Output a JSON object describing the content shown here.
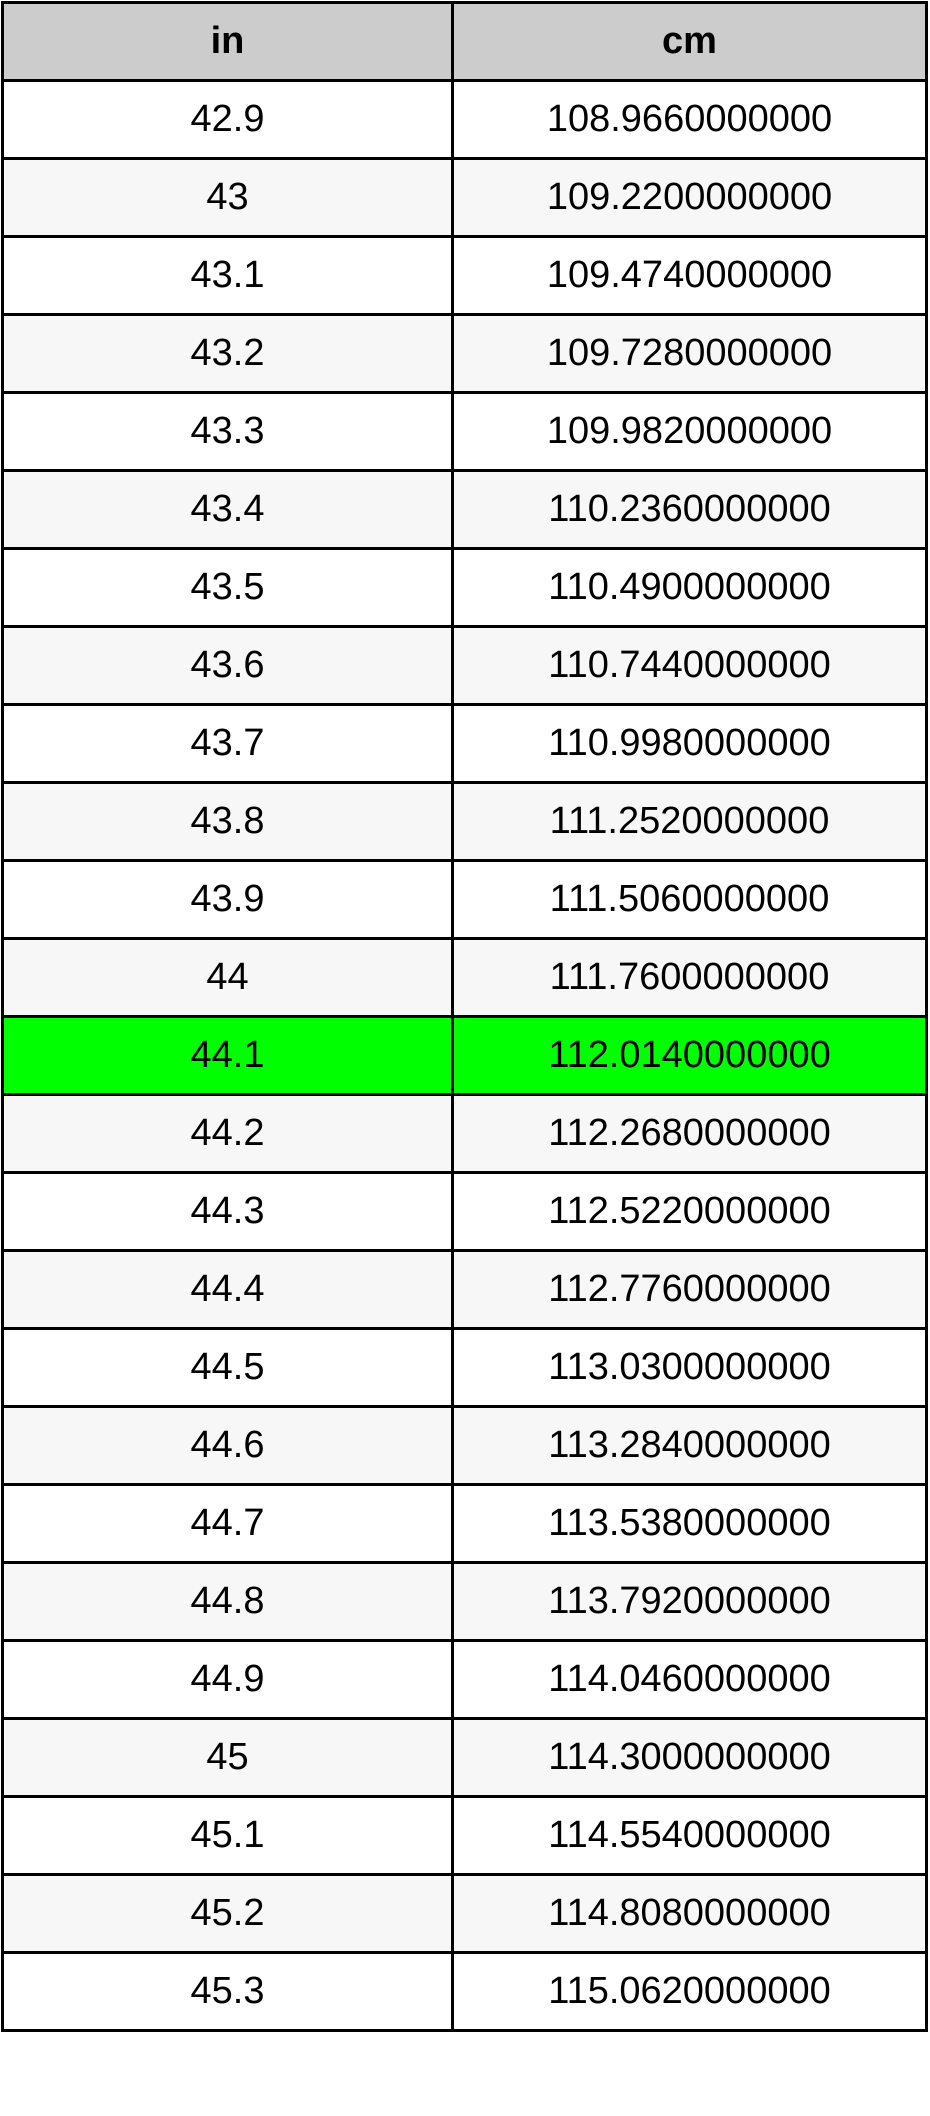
{
  "table": {
    "headers": [
      "in",
      "cm"
    ],
    "highlight_color": "#00ff00",
    "highlighted_row": 12,
    "rows": [
      [
        "42.9",
        "108.9660000000"
      ],
      [
        "43",
        "109.2200000000"
      ],
      [
        "43.1",
        "109.4740000000"
      ],
      [
        "43.2",
        "109.7280000000"
      ],
      [
        "43.3",
        "109.9820000000"
      ],
      [
        "43.4",
        "110.2360000000"
      ],
      [
        "43.5",
        "110.4900000000"
      ],
      [
        "43.6",
        "110.7440000000"
      ],
      [
        "43.7",
        "110.9980000000"
      ],
      [
        "43.8",
        "111.2520000000"
      ],
      [
        "43.9",
        "111.5060000000"
      ],
      [
        "44",
        "111.7600000000"
      ],
      [
        "44.1",
        "112.0140000000"
      ],
      [
        "44.2",
        "112.2680000000"
      ],
      [
        "44.3",
        "112.5220000000"
      ],
      [
        "44.4",
        "112.7760000000"
      ],
      [
        "44.5",
        "113.0300000000"
      ],
      [
        "44.6",
        "113.2840000000"
      ],
      [
        "44.7",
        "113.5380000000"
      ],
      [
        "44.8",
        "113.7920000000"
      ],
      [
        "44.9",
        "114.0460000000"
      ],
      [
        "45",
        "114.3000000000"
      ],
      [
        "45.1",
        "114.5540000000"
      ],
      [
        "45.2",
        "114.8080000000"
      ],
      [
        "45.3",
        "115.0620000000"
      ]
    ]
  }
}
